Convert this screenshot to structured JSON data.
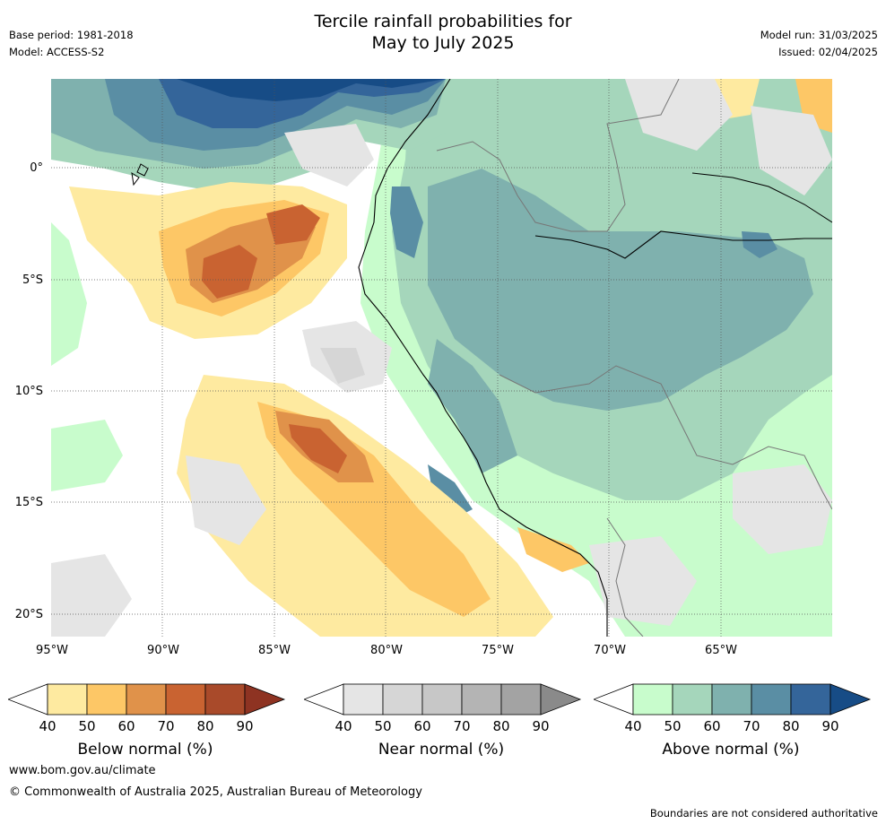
{
  "header": {
    "title_line1": "Tercile rainfall probabilities for",
    "title_line2": "May to July 2025",
    "base_period": "Base period: 1981-2018",
    "model": "Model: ACCESS-S2",
    "model_run": "Model run: 31/03/2025",
    "issued": "Issued: 02/04/2025"
  },
  "map": {
    "lat_labels": [
      "0°",
      "5°S",
      "10°S",
      "15°S",
      "20°S"
    ],
    "lon_labels": [
      "95°W",
      "90°W",
      "85°W",
      "80°W",
      "75°W",
      "70°W",
      "65°W"
    ]
  },
  "legends": [
    {
      "title": "Below normal (%)",
      "ticks": [
        "40",
        "50",
        "60",
        "70",
        "80",
        "90"
      ],
      "colors": [
        "#ffffff",
        "#feeaa0",
        "#fdc766",
        "#e0924a",
        "#c96331",
        "#a94a2a",
        "#8e3322"
      ]
    },
    {
      "title": "Near normal (%)",
      "ticks": [
        "40",
        "50",
        "60",
        "70",
        "80",
        "90"
      ],
      "colors": [
        "#ffffff",
        "#e5e5e5",
        "#d6d6d6",
        "#c7c7c7",
        "#b4b4b4",
        "#a3a3a3",
        "#8a8a8a"
      ]
    },
    {
      "title": "Above normal (%)",
      "ticks": [
        "40",
        "50",
        "60",
        "70",
        "80",
        "90"
      ],
      "colors": [
        "#ffffff",
        "#c8fccc",
        "#a5d6bb",
        "#7fb1ae",
        "#5a8ea4",
        "#34659a",
        "#174c86"
      ]
    }
  ],
  "footer": {
    "website": "www.bom.gov.au/climate",
    "copyright": "© Commonwealth of Australia 2025, Australian Bureau of Meteorology",
    "disclaimer": "Boundaries are not considered authoritative"
  }
}
